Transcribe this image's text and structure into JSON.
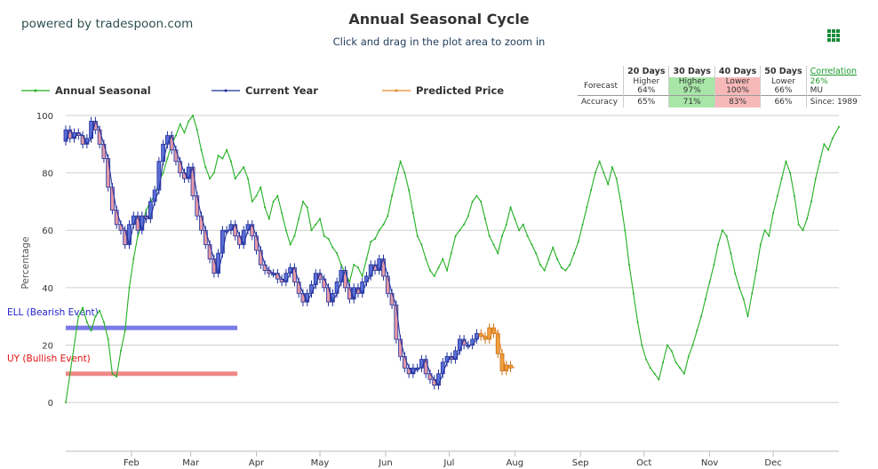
{
  "brand": "powered by tradespoon.com",
  "header": {
    "title": "Annual Seasonal Cycle",
    "subtitle": "Click and drag in the plot area to zoom in"
  },
  "legend": [
    {
      "label": "Annual Seasonal",
      "color": "#22b022"
    },
    {
      "label": "Current Year",
      "color": "#1f2f9a"
    },
    {
      "label": "Predicted Price",
      "color": "#e8892a"
    }
  ],
  "stats": {
    "headers": [
      "20 Days",
      "30 Days",
      "40 Days",
      "50 Days"
    ],
    "forecast_label": "Forecast",
    "forecast": [
      {
        "dir": "Higher",
        "pct": "64%",
        "hl": ""
      },
      {
        "dir": "Higher",
        "pct": "97%",
        "hl": "green"
      },
      {
        "dir": "Lower",
        "pct": "100%",
        "hl": "red"
      },
      {
        "dir": "Lower",
        "pct": "66%",
        "hl": ""
      }
    ],
    "accuracy_label": "Accuracy",
    "accuracy": [
      {
        "pct": "65%",
        "hl": ""
      },
      {
        "pct": "71%",
        "hl": "green"
      },
      {
        "pct": "83%",
        "hl": "red"
      },
      {
        "pct": "66%",
        "hl": ""
      }
    ],
    "correlation_label": "Correlation",
    "correlation_value": "26%",
    "ticker": "MU",
    "since": "Since: 1989"
  },
  "chart_data": {
    "type": "line",
    "ylabel": "Percentage",
    "ylim": [
      -17,
      100
    ],
    "yticks": [
      0,
      20,
      40,
      60,
      80,
      100
    ],
    "xlim": [
      0,
      365
    ],
    "months": [
      {
        "label": "Feb",
        "day": 31
      },
      {
        "label": "Mar",
        "day": 59
      },
      {
        "label": "Apr",
        "day": 90
      },
      {
        "label": "May",
        "day": 120
      },
      {
        "label": "Jun",
        "day": 151
      },
      {
        "label": "Jul",
        "day": 181
      },
      {
        "label": "Aug",
        "day": 212
      },
      {
        "label": "Sep",
        "day": 243
      },
      {
        "label": "Oct",
        "day": 273
      },
      {
        "label": "Nov",
        "day": 304
      },
      {
        "label": "Dec",
        "day": 334
      }
    ],
    "grid": true,
    "annual_seasonal": {
      "x": [
        0,
        3,
        6,
        8,
        10,
        12,
        14,
        16,
        18,
        20,
        22,
        24,
        26,
        28,
        30,
        32,
        34,
        36,
        38,
        40,
        42,
        44,
        46,
        48,
        50,
        52,
        54,
        56,
        58,
        60,
        62,
        64,
        66,
        68,
        70,
        72,
        74,
        76,
        78,
        80,
        82,
        84,
        86,
        88,
        90,
        92,
        94,
        96,
        98,
        100,
        102,
        104,
        106,
        108,
        110,
        112,
        114,
        116,
        118,
        120,
        122,
        124,
        126,
        128,
        130,
        132,
        134,
        136,
        138,
        140,
        142,
        144,
        146,
        148,
        150,
        152,
        154,
        156,
        158,
        160,
        162,
        164,
        166,
        168,
        170,
        172,
        174,
        176,
        178,
        180,
        182,
        184,
        186,
        188,
        190,
        192,
        194,
        196,
        198,
        200,
        202,
        204,
        206,
        208,
        210,
        212,
        214,
        216,
        218,
        220,
        222,
        224,
        226,
        228,
        230,
        232,
        234,
        236,
        238,
        240,
        242,
        244,
        246,
        248,
        250,
        252,
        254,
        256,
        258,
        260,
        262,
        264,
        266,
        268,
        270,
        272,
        274,
        276,
        278,
        280,
        282,
        284,
        286,
        288,
        290,
        292,
        294,
        296,
        298,
        300,
        302,
        304,
        306,
        308,
        310,
        312,
        314,
        316,
        318,
        320,
        322,
        324,
        326,
        328,
        330,
        332,
        334,
        336,
        338,
        340,
        342,
        344,
        346,
        348,
        350,
        352,
        354,
        356,
        358,
        360,
        362,
        365
      ],
      "y": [
        0,
        15,
        30,
        33,
        28,
        25,
        30,
        32,
        28,
        22,
        10,
        9,
        18,
        25,
        40,
        50,
        58,
        62,
        67,
        70,
        72,
        77,
        80,
        85,
        90,
        93,
        97,
        94,
        98,
        100,
        95,
        88,
        82,
        78,
        80,
        86,
        85,
        88,
        84,
        78,
        80,
        82,
        78,
        70,
        72,
        75,
        68,
        64,
        70,
        72,
        66,
        60,
        55,
        58,
        64,
        70,
        68,
        60,
        62,
        64,
        58,
        57,
        54,
        52,
        48,
        45,
        42,
        48,
        47,
        44,
        50,
        56,
        57,
        60,
        62,
        65,
        72,
        78,
        84,
        80,
        74,
        66,
        58,
        55,
        50,
        46,
        44,
        47,
        50,
        46,
        52,
        58,
        60,
        62,
        65,
        70,
        72,
        70,
        64,
        58,
        55,
        52,
        58,
        62,
        68,
        64,
        60,
        62,
        58,
        55,
        52,
        48,
        46,
        50,
        54,
        50,
        47,
        46,
        48,
        52,
        56,
        62,
        68,
        74,
        80,
        84,
        80,
        76,
        82,
        78,
        70,
        60,
        48,
        38,
        28,
        20,
        15,
        12,
        10,
        8,
        14,
        20,
        18,
        14,
        12,
        10,
        16,
        20,
        25,
        30,
        36,
        42,
        48,
        55,
        60,
        58,
        52,
        45,
        40,
        36,
        30,
        38,
        46,
        55,
        60,
        58,
        66,
        72,
        78,
        84,
        80,
        72,
        62,
        60,
        64,
        70,
        78,
        84,
        90,
        88,
        92,
        96
      ]
    },
    "current_year": {
      "x": [
        0,
        2,
        4,
        6,
        8,
        10,
        12,
        14,
        16,
        18,
        20,
        22,
        24,
        26,
        28,
        30,
        32,
        34,
        36,
        38,
        40,
        42,
        44,
        46,
        48,
        50,
        52,
        54,
        56,
        58,
        60,
        62,
        64,
        66,
        68,
        70,
        72,
        74,
        76,
        78,
        80,
        82,
        84,
        86,
        88,
        90,
        92,
        94,
        96,
        98,
        100,
        102,
        104,
        106,
        108,
        110,
        112,
        114,
        116,
        118,
        120,
        122,
        124,
        126,
        128,
        130,
        132,
        134,
        136,
        138,
        140,
        142,
        144,
        146,
        148,
        150,
        152,
        154,
        156,
        158,
        160,
        162,
        164,
        166,
        168,
        170,
        172,
        174,
        176,
        178,
        180,
        182,
        184,
        186,
        188,
        190,
        192,
        194,
        196
      ],
      "y": [
        91,
        95,
        92,
        94,
        93,
        90,
        92,
        98,
        95,
        90,
        85,
        75,
        67,
        62,
        60,
        55,
        62,
        65,
        60,
        65,
        64,
        70,
        74,
        84,
        90,
        93,
        88,
        84,
        80,
        78,
        82,
        72,
        65,
        60,
        55,
        50,
        45,
        52,
        60,
        60,
        62,
        58,
        55,
        60,
        62,
        58,
        53,
        48,
        46,
        45,
        45,
        43,
        42,
        45,
        47,
        42,
        38,
        35,
        38,
        41,
        45,
        43,
        40,
        35,
        38,
        42,
        46,
        40,
        36,
        40,
        38,
        42,
        44,
        48,
        46,
        50,
        44,
        38,
        34,
        22,
        16,
        12,
        10,
        12,
        12,
        15,
        10,
        8,
        6,
        10,
        14,
        16,
        15,
        18,
        22,
        20,
        20,
        22,
        24
      ]
    },
    "predicted_price": {
      "x": [
        196,
        198,
        200,
        202,
        204,
        206,
        208,
        210,
        212
      ],
      "y": [
        24,
        23,
        22,
        26,
        24,
        17,
        11,
        13,
        12
      ]
    },
    "annotations": [
      {
        "label": "ELL (Bearish Event)",
        "y": 26,
        "x_end": 81,
        "color": "#7a7ae8",
        "text_color": "#2222cc"
      },
      {
        "label": "UY (Bullish Event)",
        "y": 10,
        "x_end": 81,
        "color": "#f08888",
        "text_color": "#dd1111"
      }
    ]
  }
}
